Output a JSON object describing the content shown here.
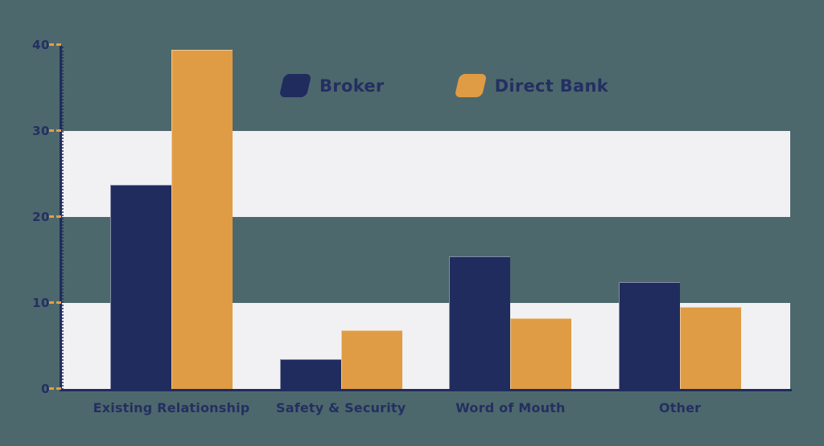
{
  "background_color": "#4d686c",
  "legend": {
    "items": [
      {
        "label": "Broker",
        "color": "#202c5e"
      },
      {
        "label": "Direct Bank",
        "color": "#e09c44"
      }
    ]
  },
  "chart_data": {
    "type": "bar",
    "title": "",
    "categories": [
      "Existing Relationship",
      "Safety & Security",
      "Word of Mouth",
      "Other"
    ],
    "series": [
      {
        "name": "Broker",
        "color": "#202c5e",
        "values": [
          23.7,
          3.5,
          15.4,
          12.4
        ]
      },
      {
        "name": "Direct Bank",
        "color": "#e09c44",
        "values": [
          39.4,
          6.8,
          8.2,
          9.5
        ]
      }
    ],
    "ylim": [
      0,
      40
    ],
    "y_ticks": [
      0,
      10,
      20,
      30,
      40
    ],
    "xlabel": "",
    "ylabel": "",
    "legend_position": "top-center",
    "grid": "alternating-horizontal-bands",
    "band_levels": [
      [
        0,
        10
      ],
      [
        20,
        30
      ]
    ],
    "band_fill_color": "#f1f1f4",
    "axis_color": "#202c5e",
    "tick_mark_color": "#e2a049",
    "text_color": "#232f62"
  }
}
